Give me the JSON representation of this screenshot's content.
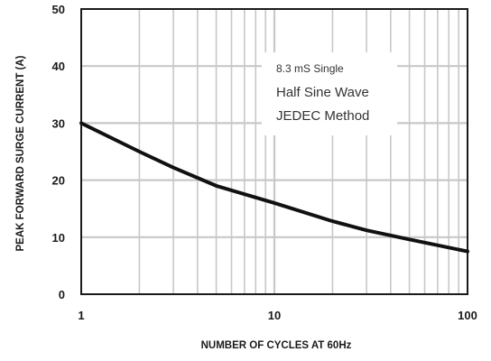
{
  "chart_data": {
    "type": "line",
    "xlabel": "NUMBER OF CYCLES AT 60Hz",
    "ylabel": "PEAK FORWARD SURGE CURRENT (A)",
    "x_scale": "log",
    "xlim": [
      1,
      100
    ],
    "ylim": [
      0,
      50
    ],
    "x_ticks": [
      1,
      10,
      100
    ],
    "x_tick_labels": [
      "1",
      "10",
      "100"
    ],
    "y_ticks": [
      0,
      10,
      20,
      30,
      40,
      50
    ],
    "y_tick_labels": [
      "0",
      "10",
      "20",
      "30",
      "40",
      "50"
    ],
    "grid": true,
    "series": [
      {
        "x": [
          1,
          2,
          3,
          5,
          10,
          20,
          30,
          50,
          100
        ],
        "y": [
          30,
          25,
          22.2,
          19,
          16,
          12.8,
          11.2,
          9.6,
          7.5
        ]
      }
    ],
    "annotation_lines": [
      "8.3 mS Single",
      "Half Sine Wave",
      "JEDEC Method"
    ],
    "colors": {
      "line": "#111111",
      "grid": "#c8c8c8",
      "axes": "#1a1a1a"
    }
  }
}
